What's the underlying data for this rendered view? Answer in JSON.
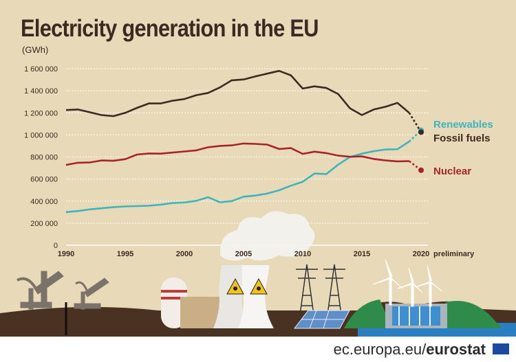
{
  "header": {
    "title": "Electricity generation in the EU",
    "unit": "(GWh)"
  },
  "footer": {
    "site": "ec.europa.eu/",
    "brand": "eurostat"
  },
  "colors": {
    "background": "#e8d9b8",
    "renewables": "#3db5bd",
    "fossil": "#3a2a22",
    "nuclear": "#a8232a"
  },
  "chart_data": {
    "type": "line",
    "title": "Electricity generation in the EU",
    "ylabel": "(GWh)",
    "xlabel": "",
    "ylim": [
      0,
      1600000
    ],
    "xlim": [
      1990,
      2020
    ],
    "yticks": [
      0,
      200000,
      400000,
      600000,
      800000,
      1000000,
      1200000,
      1400000,
      1600000
    ],
    "ytick_labels": [
      "0",
      "200 000",
      "400 000",
      "600 000",
      "800 000",
      "1 000 000",
      "1 200 000",
      "1 400 000",
      "1 600 000"
    ],
    "xticks": [
      1990,
      1995,
      2000,
      2005,
      2010,
      2015,
      2020
    ],
    "xtick_labels": [
      "1990",
      "1995",
      "2000",
      "2005",
      "2010",
      "2015",
      "2020"
    ],
    "x_annotation": "preliminary",
    "grid": true,
    "x": [
      1990,
      1991,
      1992,
      1993,
      1994,
      1995,
      1996,
      1997,
      1998,
      1999,
      2000,
      2001,
      2002,
      2003,
      2004,
      2005,
      2006,
      2007,
      2008,
      2009,
      2010,
      2011,
      2012,
      2013,
      2014,
      2015,
      2016,
      2017,
      2018,
      2019,
      2020
    ],
    "series": [
      {
        "name": "Renewables",
        "color": "#3db5bd",
        "values": [
          300000,
          310000,
          325000,
          335000,
          345000,
          352000,
          355000,
          358000,
          368000,
          382000,
          388000,
          402000,
          435000,
          390000,
          400000,
          440000,
          450000,
          468000,
          498000,
          540000,
          575000,
          650000,
          645000,
          730000,
          800000,
          830000,
          852000,
          868000,
          870000,
          940000,
          1042000
        ]
      },
      {
        "name": "Fossil fuels",
        "color": "#3a2a22",
        "values": [
          1225000,
          1230000,
          1205000,
          1180000,
          1170000,
          1200000,
          1245000,
          1285000,
          1285000,
          1310000,
          1325000,
          1360000,
          1380000,
          1430000,
          1495000,
          1502000,
          1530000,
          1555000,
          1580000,
          1540000,
          1420000,
          1440000,
          1425000,
          1370000,
          1240000,
          1180000,
          1230000,
          1255000,
          1290000,
          1200000,
          1025000
        ]
      },
      {
        "name": "Nuclear",
        "color": "#a8232a",
        "values": [
          728000,
          748000,
          750000,
          768000,
          765000,
          780000,
          822000,
          832000,
          830000,
          840000,
          850000,
          860000,
          888000,
          900000,
          905000,
          922000,
          918000,
          912000,
          872000,
          880000,
          828000,
          848000,
          835000,
          812000,
          802000,
          805000,
          782000,
          768000,
          760000,
          762000,
          680000
        ]
      }
    ]
  }
}
